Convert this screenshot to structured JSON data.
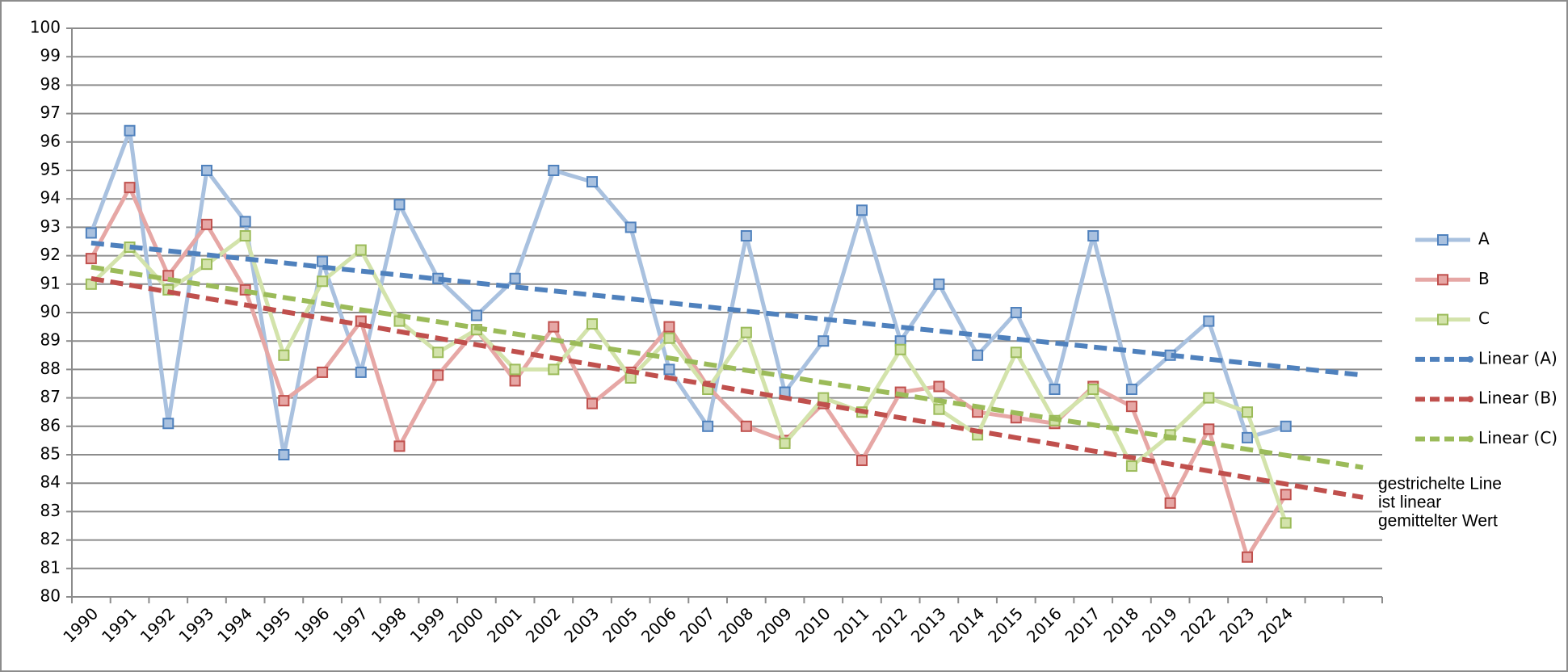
{
  "chart_data": {
    "type": "line",
    "categories": [
      "1990",
      "1991",
      "1992",
      "1993",
      "1994",
      "1995",
      "1996",
      "1997",
      "1998",
      "1999",
      "2000",
      "2001",
      "2002",
      "2003",
      "2005",
      "2006",
      "2007",
      "2008",
      "2009",
      "2010",
      "2011",
      "2012",
      "2013",
      "2014",
      "2015",
      "2016",
      "2017",
      "2018",
      "2019",
      "2022",
      "2023",
      "2024",
      null,
      null
    ],
    "ylim": [
      80,
      100
    ],
    "yticks": [
      80,
      81,
      82,
      83,
      84,
      85,
      86,
      87,
      88,
      89,
      90,
      91,
      92,
      93,
      94,
      95,
      96,
      97,
      98,
      99,
      100
    ],
    "grid": true,
    "legend": "right",
    "annotation": [
      "gestrichelte Line",
      "ist linear",
      "gemittelter Wert"
    ],
    "series": [
      {
        "name": "A",
        "color": "#4f81bd",
        "line_color": "#a9c1df",
        "marker": true,
        "dashed": false,
        "values": [
          92.8,
          96.4,
          86.1,
          95.0,
          93.2,
          85.0,
          91.8,
          87.9,
          93.8,
          91.2,
          89.9,
          91.2,
          95.0,
          94.6,
          93.0,
          88.0,
          86.0,
          92.7,
          87.2,
          89.0,
          93.6,
          89.0,
          91.0,
          88.5,
          90.0,
          87.3,
          92.7,
          87.3,
          88.5,
          89.7,
          85.6,
          86.0,
          null,
          null
        ]
      },
      {
        "name": "B",
        "color": "#c0504d",
        "line_color": "#e6a7a5",
        "marker": true,
        "dashed": false,
        "values": [
          91.9,
          94.4,
          91.3,
          93.1,
          90.8,
          86.9,
          87.9,
          89.7,
          85.3,
          87.8,
          89.4,
          87.6,
          89.5,
          86.8,
          87.9,
          89.5,
          87.4,
          86.0,
          85.5,
          86.8,
          84.8,
          87.2,
          87.4,
          86.5,
          86.3,
          86.1,
          87.4,
          86.7,
          83.3,
          85.9,
          81.4,
          83.6,
          null,
          null
        ]
      },
      {
        "name": "C",
        "color": "#9bbb59",
        "line_color": "#d3e3ab",
        "marker": true,
        "dashed": false,
        "values": [
          91.0,
          92.3,
          90.8,
          91.7,
          92.7,
          88.5,
          91.1,
          92.2,
          89.7,
          88.6,
          89.4,
          88.0,
          88.0,
          89.6,
          87.7,
          89.1,
          87.3,
          89.3,
          85.4,
          87.0,
          86.5,
          88.7,
          86.6,
          85.7,
          88.6,
          86.2,
          87.3,
          84.6,
          85.7,
          87.0,
          86.5,
          82.6,
          null,
          null
        ]
      },
      {
        "name": "Linear (A)",
        "color": "#4f81bd",
        "marker": false,
        "dashed": true,
        "values": [
          92.45,
          92.31,
          92.17,
          92.03,
          91.89,
          91.75,
          91.6,
          91.46,
          91.32,
          91.18,
          91.04,
          90.9,
          90.76,
          90.62,
          90.48,
          90.34,
          90.2,
          90.05,
          89.91,
          89.77,
          89.63,
          89.49,
          89.35,
          89.21,
          89.07,
          88.93,
          88.79,
          88.65,
          88.5,
          88.36,
          88.22,
          88.08,
          87.94,
          87.8
        ]
      },
      {
        "name": "Linear (B)",
        "color": "#c0504d",
        "marker": false,
        "dashed": true,
        "values": [
          91.2,
          90.97,
          90.73,
          90.5,
          90.27,
          90.03,
          89.8,
          89.57,
          89.33,
          89.1,
          88.87,
          88.63,
          88.4,
          88.17,
          87.93,
          87.7,
          87.47,
          87.23,
          87.0,
          86.77,
          86.53,
          86.3,
          86.07,
          85.83,
          85.6,
          85.37,
          85.13,
          84.9,
          84.67,
          84.43,
          84.2,
          83.97,
          83.73,
          83.5
        ]
      },
      {
        "name": "Linear (C)",
        "color": "#9bbb59",
        "marker": false,
        "dashed": true,
        "values": [
          91.6,
          91.39,
          91.17,
          90.96,
          90.75,
          90.53,
          90.32,
          90.1,
          89.89,
          89.68,
          89.46,
          89.25,
          89.04,
          88.82,
          88.61,
          88.4,
          88.18,
          87.97,
          87.76,
          87.54,
          87.33,
          87.12,
          86.9,
          86.69,
          86.47,
          86.26,
          86.05,
          85.83,
          85.62,
          85.41,
          85.19,
          84.98,
          84.77,
          84.55
        ]
      }
    ]
  }
}
